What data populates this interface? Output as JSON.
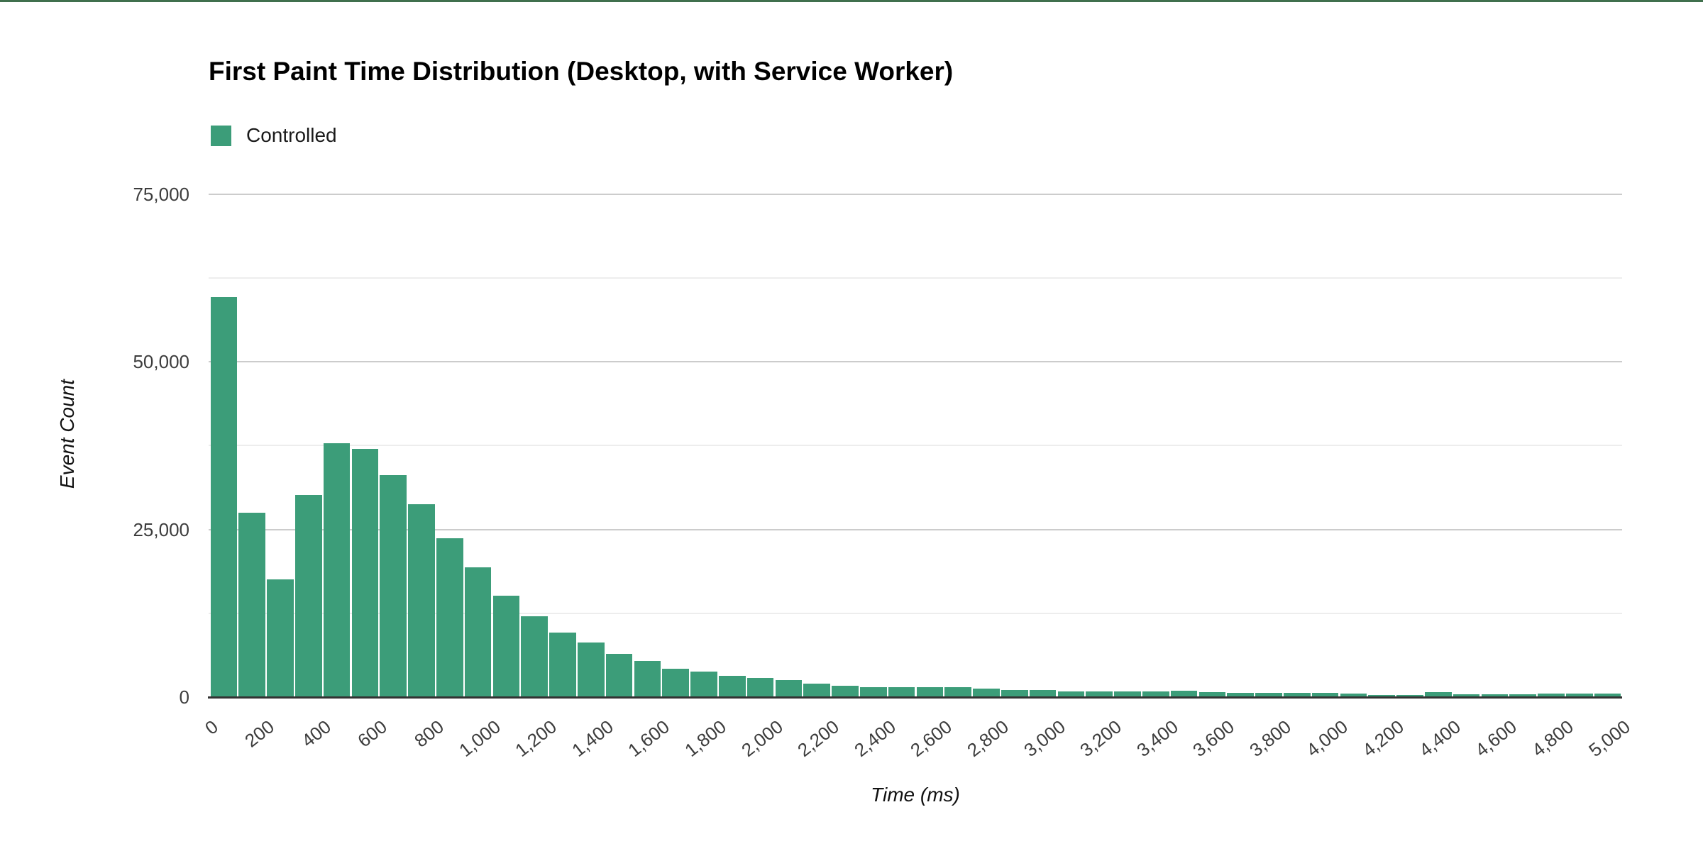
{
  "page": {
    "background": "#ffffff",
    "top_border_color": "#40704d"
  },
  "chart": {
    "title": "First Paint Time Distribution (Desktop, with Service Worker)",
    "legend": {
      "label": "Controlled",
      "swatch_color": "#3c9d79"
    },
    "y_axis_title": "Event Count",
    "x_axis_title": "Time (ms)"
  },
  "chart_data": {
    "type": "bar",
    "subtype": "histogram",
    "title": "First Paint Time Distribution (Desktop, with Service Worker)",
    "xlabel": "Time (ms)",
    "ylabel": "Event Count",
    "xlim": [
      0,
      5000
    ],
    "ylim": [
      0,
      78500
    ],
    "bin_width_ms": 100,
    "grid": true,
    "legend_position": "top-left",
    "series": [
      {
        "name": "Controlled",
        "color": "#3c9d79",
        "bin_start_ms": 0,
        "values": [
          59600,
          27500,
          17600,
          30100,
          37800,
          37000,
          33100,
          28700,
          23700,
          19300,
          15100,
          12000,
          9600,
          8100,
          6400,
          5400,
          4200,
          3800,
          3200,
          2900,
          2550,
          2000,
          1700,
          1450,
          1450,
          1500,
          1480,
          1300,
          1060,
          1060,
          850,
          840,
          830,
          840,
          1000,
          700,
          680,
          650,
          620,
          600,
          560,
          340,
          360,
          780,
          420,
          450,
          460,
          490,
          530,
          560
        ]
      }
    ],
    "y_ticks": [
      {
        "value": 0,
        "label": "0"
      },
      {
        "value": 25000,
        "label": "25,000"
      },
      {
        "value": 50000,
        "label": "50,000"
      },
      {
        "value": 75000,
        "label": "75,000"
      }
    ],
    "y_minor_gridlines": [
      12500,
      37500,
      62500
    ],
    "x_ticks": [
      {
        "value": 0,
        "label": "0"
      },
      {
        "value": 200,
        "label": "200"
      },
      {
        "value": 400,
        "label": "400"
      },
      {
        "value": 600,
        "label": "600"
      },
      {
        "value": 800,
        "label": "800"
      },
      {
        "value": 1000,
        "label": "1,000"
      },
      {
        "value": 1200,
        "label": "1,200"
      },
      {
        "value": 1400,
        "label": "1,400"
      },
      {
        "value": 1600,
        "label": "1,600"
      },
      {
        "value": 1800,
        "label": "1,800"
      },
      {
        "value": 2000,
        "label": "2,000"
      },
      {
        "value": 2200,
        "label": "2,200"
      },
      {
        "value": 2400,
        "label": "2,400"
      },
      {
        "value": 2600,
        "label": "2,600"
      },
      {
        "value": 2800,
        "label": "2,800"
      },
      {
        "value": 3000,
        "label": "3,000"
      },
      {
        "value": 3200,
        "label": "3,200"
      },
      {
        "value": 3400,
        "label": "3,400"
      },
      {
        "value": 3600,
        "label": "3,600"
      },
      {
        "value": 3800,
        "label": "3,800"
      },
      {
        "value": 4000,
        "label": "4,000"
      },
      {
        "value": 4200,
        "label": "4,200"
      },
      {
        "value": 4400,
        "label": "4,400"
      },
      {
        "value": 4600,
        "label": "4,600"
      },
      {
        "value": 4800,
        "label": "4,800"
      },
      {
        "value": 5000,
        "label": "5,000"
      }
    ],
    "axis_colors": {
      "baseline": "#333333",
      "major_gridline": "#cccccc",
      "minor_gridline": "#ededed",
      "tick_label": "#3d3d3d"
    }
  }
}
